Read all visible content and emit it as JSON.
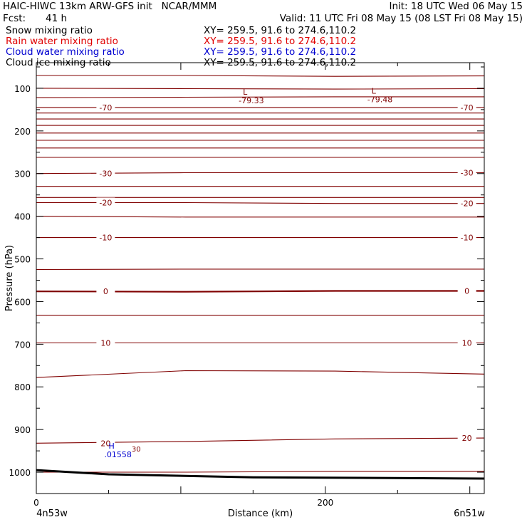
{
  "header": {
    "title": "HAIC-HIWC 13km ARW-GFS init   NCAR/MMM",
    "init": "Init: 18 UTC Wed 06 May 15",
    "fcst_label": "Fcst:",
    "fcst_value": "41 h",
    "valid": "Valid: 11 UTC Fri 08 May 15 (08 LST Fri 08 May 15)"
  },
  "fields": [
    {
      "name": "Snow mixing ratio",
      "xy": "XY= 259.5, 91.6 to 274.6,110.2",
      "color": "#000000"
    },
    {
      "name": "Rain water mixing ratio",
      "xy": "XY= 259.5, 91.6 to 274.6,110.2",
      "color": "#e00000"
    },
    {
      "name": "Cloud water mixing ratio",
      "xy": "XY= 259.5, 91.6 to 274.6,110.2",
      "color": "#0000d0"
    },
    {
      "name": "Cloud ice mixing ratio",
      "xy": "XY= 259.5, 91.6 to 274.6,110.2",
      "color": "#000000"
    }
  ],
  "chart_data": {
    "type": "line",
    "xlabel": "Distance (km)",
    "ylabel": "Pressure (hPa)",
    "xlim": [
      0,
      310
    ],
    "ylim": [
      1050,
      40
    ],
    "x_ticks": [
      0,
      200
    ],
    "y_ticks": [
      100,
      200,
      300,
      400,
      500,
      600,
      700,
      800,
      900,
      1000
    ],
    "x_end_labels": {
      "left": "4n53w",
      "right": "6n51w"
    },
    "contour_color": "#800000",
    "isotherms": [
      {
        "p": [
          70,
          70,
          72,
          71
        ],
        "label": ""
      },
      {
        "p": [
          100,
          101,
          102,
          101
        ],
        "label": ""
      },
      {
        "p": [
          122,
          121,
          120,
          120
        ],
        "label": ""
      },
      {
        "p": [
          145,
          145,
          145,
          145
        ],
        "label": "-70"
      },
      {
        "p": [
          158,
          158,
          158,
          158
        ],
        "label": ""
      },
      {
        "p": [
          172,
          172,
          172,
          172
        ],
        "label": ""
      },
      {
        "p": [
          187,
          187,
          187,
          187
        ],
        "label": ""
      },
      {
        "p": [
          205,
          205,
          205,
          205
        ],
        "label": ""
      },
      {
        "p": [
          222,
          222,
          222,
          222
        ],
        "label": ""
      },
      {
        "p": [
          240,
          240,
          240,
          240
        ],
        "label": ""
      },
      {
        "p": [
          262,
          262,
          262,
          262
        ],
        "label": ""
      },
      {
        "p": [
          300,
          298,
          298,
          298
        ],
        "label": "-30"
      },
      {
        "p": [
          330,
          330,
          330,
          330
        ],
        "label": ""
      },
      {
        "p": [
          356,
          356,
          356,
          356
        ],
        "label": ""
      },
      {
        "p": [
          368,
          368,
          370,
          370
        ],
        "label": "-20"
      },
      {
        "p": [
          400,
          402,
          402,
          402
        ],
        "label": ""
      },
      {
        "p": [
          450,
          450,
          450,
          450
        ],
        "label": "-10"
      },
      {
        "p": [
          525,
          524,
          524,
          524
        ],
        "label": ""
      },
      {
        "p": [
          576,
          577,
          575,
          575
        ],
        "label": "0",
        "bold": true
      },
      {
        "p": [
          632,
          632,
          632,
          632
        ],
        "label": ""
      },
      {
        "p": [
          697,
          697,
          697,
          697
        ],
        "label": "10"
      },
      {
        "p": [
          778,
          762,
          763,
          770
        ],
        "label": ""
      },
      {
        "p": [
          932,
          928,
          922,
          920
        ],
        "label": "20"
      },
      {
        "p": [
          1000,
          1000,
          998,
          998
        ],
        "label": ""
      }
    ],
    "ground": {
      "x": [
        0,
        50,
        150,
        310
      ],
      "p": [
        995,
        1005,
        1012,
        1015
      ]
    },
    "annotations": [
      {
        "text": "L",
        "value": "-79.33",
        "x": 143,
        "p": 115,
        "color": "#800000"
      },
      {
        "text": "L",
        "value": "-79.48",
        "x": 232,
        "p": 113,
        "color": "#800000"
      },
      {
        "text": "H",
        "value": ".01558",
        "x": 50,
        "p": 945,
        "color": "#0000d0"
      },
      {
        "text": "",
        "value": "30",
        "x": 66,
        "p": 945,
        "color": "#800000"
      }
    ]
  }
}
